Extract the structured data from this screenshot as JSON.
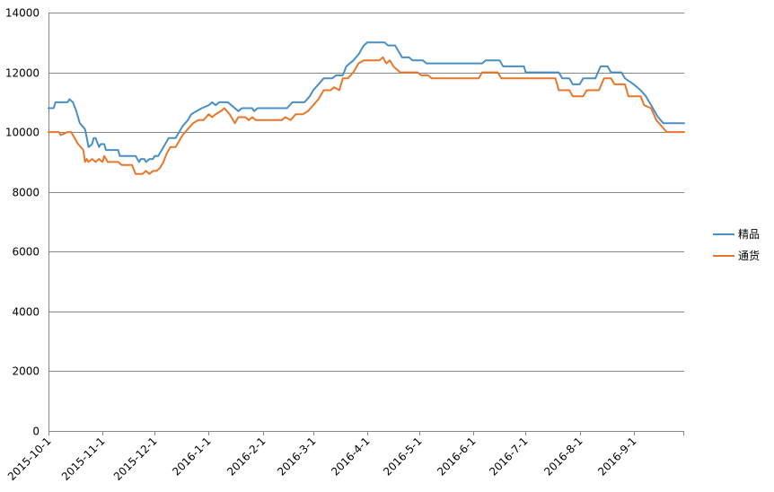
{
  "chart_data": {
    "type": "line",
    "title": "",
    "xlabel": "",
    "ylabel": "",
    "ylim": [
      0,
      14000
    ],
    "y_ticks": [
      "0",
      "2000",
      "4000",
      "6000",
      "8000",
      "10000",
      "12000",
      "14000"
    ],
    "x_range": [
      "2015-10-1",
      "2016-9-30"
    ],
    "x_ticks": [
      "2015-10-1",
      "2015-11-1",
      "2015-12-1",
      "2016-1-1",
      "2016-2-1",
      "2016-3-1",
      "2016-4-1",
      "2016-5-1",
      "2016-6-1",
      "2016-7-1",
      "2016-8-1",
      "2016-9-1"
    ],
    "grid": "horizontal",
    "legend_position": "right",
    "series": [
      {
        "name": "精品",
        "color": "#4a8fc4",
        "points": [
          [
            "2015-10-1",
            10800
          ],
          [
            "2015-10-4",
            10800
          ],
          [
            "2015-10-5",
            11000
          ],
          [
            "2015-10-12",
            11000
          ],
          [
            "2015-10-13",
            11100
          ],
          [
            "2015-10-15",
            11000
          ],
          [
            "2015-10-17",
            10700
          ],
          [
            "2015-10-19",
            10300
          ],
          [
            "2015-10-22",
            10100
          ],
          [
            "2015-10-23",
            9800
          ],
          [
            "2015-10-24",
            9500
          ],
          [
            "2015-10-26",
            9600
          ],
          [
            "2015-10-27",
            9800
          ],
          [
            "2015-10-28",
            9800
          ],
          [
            "2015-10-30",
            9500
          ],
          [
            "2015-10-31",
            9600
          ],
          [
            "2015-11-2",
            9600
          ],
          [
            "2015-11-3",
            9400
          ],
          [
            "2015-11-10",
            9400
          ],
          [
            "2015-11-11",
            9200
          ],
          [
            "2015-11-20",
            9200
          ],
          [
            "2015-11-22",
            9000
          ],
          [
            "2015-11-23",
            9100
          ],
          [
            "2015-11-25",
            9100
          ],
          [
            "2015-11-26",
            9000
          ],
          [
            "2015-11-28",
            9100
          ],
          [
            "2015-11-30",
            9100
          ],
          [
            "2015-12-1",
            9200
          ],
          [
            "2015-12-3",
            9200
          ],
          [
            "2015-12-5",
            9400
          ],
          [
            "2015-12-7",
            9600
          ],
          [
            "2015-12-9",
            9800
          ],
          [
            "2015-12-13",
            9800
          ],
          [
            "2015-12-15",
            10000
          ],
          [
            "2015-12-17",
            10200
          ],
          [
            "2015-12-20",
            10400
          ],
          [
            "2015-12-22",
            10600
          ],
          [
            "2015-12-25",
            10700
          ],
          [
            "2015-12-28",
            10800
          ],
          [
            "2016-1-1",
            10900
          ],
          [
            "2016-1-3",
            11000
          ],
          [
            "2016-1-5",
            10900
          ],
          [
            "2016-1-7",
            11000
          ],
          [
            "2016-1-12",
            11000
          ],
          [
            "2016-1-14",
            10900
          ],
          [
            "2016-1-18",
            10700
          ],
          [
            "2016-1-20",
            10800
          ],
          [
            "2016-1-26",
            10800
          ],
          [
            "2016-1-27",
            10700
          ],
          [
            "2016-1-29",
            10800
          ],
          [
            "2016-2-1",
            10800
          ],
          [
            "2016-2-15",
            10800
          ],
          [
            "2016-2-18",
            11000
          ],
          [
            "2016-2-22",
            11000
          ],
          [
            "2016-2-25",
            11000
          ],
          [
            "2016-2-28",
            11200
          ],
          [
            "2016-3-1",
            11400
          ],
          [
            "2016-3-4",
            11600
          ],
          [
            "2016-3-7",
            11800
          ],
          [
            "2016-3-12",
            11800
          ],
          [
            "2016-3-14",
            11900
          ],
          [
            "2016-3-18",
            11900
          ],
          [
            "2016-3-20",
            12200
          ],
          [
            "2016-3-24",
            12400
          ],
          [
            "2016-3-27",
            12600
          ],
          [
            "2016-3-30",
            12900
          ],
          [
            "2016-4-1",
            13000
          ],
          [
            "2016-4-11",
            13000
          ],
          [
            "2016-4-13",
            12900
          ],
          [
            "2016-4-17",
            12900
          ],
          [
            "2016-4-19",
            12700
          ],
          [
            "2016-4-21",
            12500
          ],
          [
            "2016-4-25",
            12500
          ],
          [
            "2016-4-27",
            12400
          ],
          [
            "2016-5-3",
            12400
          ],
          [
            "2016-5-5",
            12300
          ],
          [
            "2016-6-6",
            12300
          ],
          [
            "2016-6-8",
            12400
          ],
          [
            "2016-6-16",
            12400
          ],
          [
            "2016-6-18",
            12200
          ],
          [
            "2016-6-30",
            12200
          ],
          [
            "2016-7-1",
            12000
          ],
          [
            "2016-7-20",
            12000
          ],
          [
            "2016-7-22",
            11800
          ],
          [
            "2016-7-26",
            11800
          ],
          [
            "2016-7-28",
            11600
          ],
          [
            "2016-8-1",
            11600
          ],
          [
            "2016-8-3",
            11800
          ],
          [
            "2016-8-10",
            11800
          ],
          [
            "2016-8-13",
            12200
          ],
          [
            "2016-8-17",
            12200
          ],
          [
            "2016-8-19",
            12000
          ],
          [
            "2016-8-25",
            12000
          ],
          [
            "2016-8-27",
            11800
          ],
          [
            "2016-9-1",
            11600
          ],
          [
            "2016-9-5",
            11400
          ],
          [
            "2016-9-8",
            11200
          ],
          [
            "2016-9-12",
            10800
          ],
          [
            "2016-9-15",
            10500
          ],
          [
            "2016-9-18",
            10300
          ],
          [
            "2016-9-30",
            10300
          ]
        ]
      },
      {
        "name": "通货",
        "color": "#e8762b",
        "points": [
          [
            "2015-10-1",
            10000
          ],
          [
            "2015-10-7",
            10000
          ],
          [
            "2015-10-8",
            9900
          ],
          [
            "2015-10-10",
            9950
          ],
          [
            "2015-10-12",
            10000
          ],
          [
            "2015-10-14",
            10000
          ],
          [
            "2015-10-16",
            9800
          ],
          [
            "2015-10-18",
            9600
          ],
          [
            "2015-10-21",
            9400
          ],
          [
            "2015-10-22",
            9000
          ],
          [
            "2015-10-23",
            9100
          ],
          [
            "2015-10-24",
            9000
          ],
          [
            "2015-10-26",
            9100
          ],
          [
            "2015-10-28",
            9000
          ],
          [
            "2015-10-30",
            9100
          ],
          [
            "2015-11-1",
            9000
          ],
          [
            "2015-11-2",
            9200
          ],
          [
            "2015-11-4",
            9000
          ],
          [
            "2015-11-10",
            9000
          ],
          [
            "2015-11-12",
            8900
          ],
          [
            "2015-11-18",
            8900
          ],
          [
            "2015-11-20",
            8600
          ],
          [
            "2015-11-24",
            8600
          ],
          [
            "2015-11-26",
            8700
          ],
          [
            "2015-11-28",
            8600
          ],
          [
            "2015-11-30",
            8700
          ],
          [
            "2015-12-2",
            8700
          ],
          [
            "2015-12-4",
            8800
          ],
          [
            "2015-12-6",
            9000
          ],
          [
            "2015-12-8",
            9300
          ],
          [
            "2015-12-10",
            9500
          ],
          [
            "2015-12-13",
            9500
          ],
          [
            "2015-12-15",
            9700
          ],
          [
            "2015-12-17",
            9900
          ],
          [
            "2015-12-20",
            10100
          ],
          [
            "2015-12-23",
            10300
          ],
          [
            "2015-12-26",
            10400
          ],
          [
            "2015-12-29",
            10400
          ],
          [
            "2016-1-1",
            10600
          ],
          [
            "2016-1-3",
            10500
          ],
          [
            "2016-1-5",
            10600
          ],
          [
            "2016-1-8",
            10700
          ],
          [
            "2016-1-10",
            10800
          ],
          [
            "2016-1-13",
            10600
          ],
          [
            "2016-1-16",
            10300
          ],
          [
            "2016-1-18",
            10500
          ],
          [
            "2016-1-22",
            10500
          ],
          [
            "2016-1-24",
            10400
          ],
          [
            "2016-1-26",
            10500
          ],
          [
            "2016-1-28",
            10400
          ],
          [
            "2016-2-12",
            10400
          ],
          [
            "2016-2-14",
            10500
          ],
          [
            "2016-2-17",
            10400
          ],
          [
            "2016-2-20",
            10600
          ],
          [
            "2016-2-24",
            10600
          ],
          [
            "2016-2-27",
            10700
          ],
          [
            "2016-3-1",
            10900
          ],
          [
            "2016-3-4",
            11100
          ],
          [
            "2016-3-7",
            11400
          ],
          [
            "2016-3-11",
            11400
          ],
          [
            "2016-3-13",
            11500
          ],
          [
            "2016-3-16",
            11400
          ],
          [
            "2016-3-18",
            11800
          ],
          [
            "2016-3-21",
            11800
          ],
          [
            "2016-3-24",
            12000
          ],
          [
            "2016-3-27",
            12300
          ],
          [
            "2016-3-30",
            12400
          ],
          [
            "2016-4-8",
            12400
          ],
          [
            "2016-4-10",
            12500
          ],
          [
            "2016-4-12",
            12300
          ],
          [
            "2016-4-14",
            12400
          ],
          [
            "2016-4-16",
            12200
          ],
          [
            "2016-4-18",
            12100
          ],
          [
            "2016-4-20",
            12000
          ],
          [
            "2016-4-30",
            12000
          ],
          [
            "2016-5-2",
            11900
          ],
          [
            "2016-5-6",
            11900
          ],
          [
            "2016-5-8",
            11800
          ],
          [
            "2016-6-4",
            11800
          ],
          [
            "2016-6-6",
            12000
          ],
          [
            "2016-6-15",
            12000
          ],
          [
            "2016-6-17",
            11800
          ],
          [
            "2016-7-18",
            11800
          ],
          [
            "2016-7-20",
            11400
          ],
          [
            "2016-7-26",
            11400
          ],
          [
            "2016-7-28",
            11200
          ],
          [
            "2016-8-3",
            11200
          ],
          [
            "2016-8-5",
            11400
          ],
          [
            "2016-8-12",
            11400
          ],
          [
            "2016-8-15",
            11800
          ],
          [
            "2016-8-19",
            11800
          ],
          [
            "2016-8-21",
            11600
          ],
          [
            "2016-8-27",
            11600
          ],
          [
            "2016-8-29",
            11200
          ],
          [
            "2016-9-5",
            11200
          ],
          [
            "2016-9-7",
            10900
          ],
          [
            "2016-9-11",
            10800
          ],
          [
            "2016-9-14",
            10400
          ],
          [
            "2016-9-17",
            10200
          ],
          [
            "2016-9-20",
            10000
          ],
          [
            "2016-9-30",
            10000
          ]
        ]
      }
    ]
  }
}
